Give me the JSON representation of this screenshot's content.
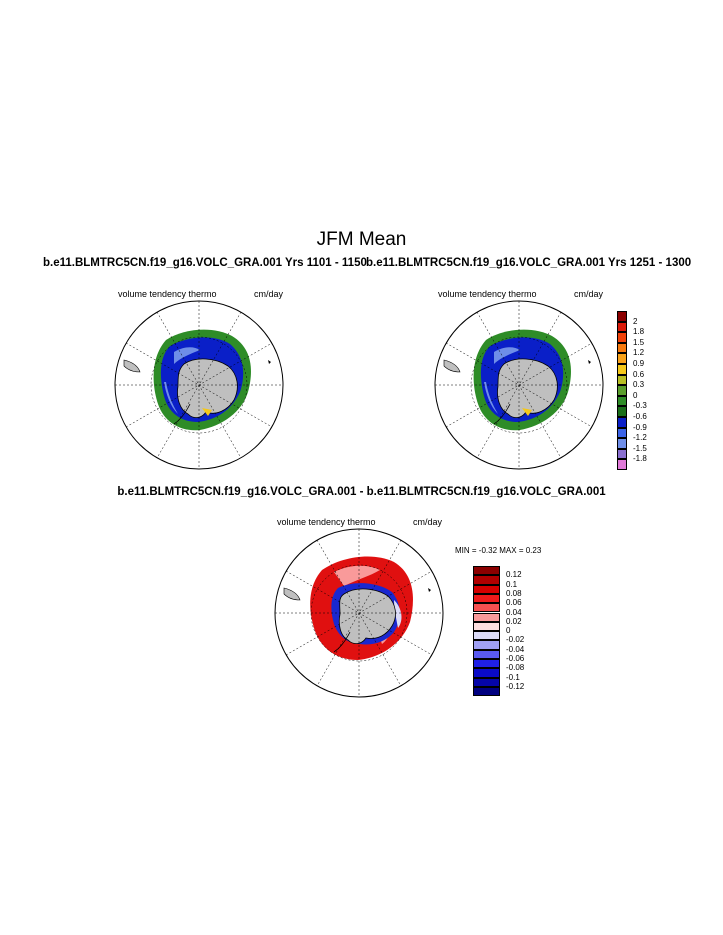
{
  "figure": {
    "main_title": "JFM Mean"
  },
  "panels": [
    {
      "title": "b.e11.BLMTRC5CN.f19_g16.VOLC_GRA.001  Yrs 1101 - 1150",
      "variable": "volume tendency thermo",
      "units": "cm/day"
    },
    {
      "title": "b.e11.BLMTRC5CN.f19_g16.VOLC_GRA.001  Yrs 1251 - 1300",
      "variable": "volume tendency thermo",
      "units": "cm/day"
    },
    {
      "title": "b.e11.BLMTRC5CN.f19_g16.VOLC_GRA.001 - b.e11.BLMTRC5CN.f19_g16.VOLC_GRA.001",
      "variable": "volume tendency thermo",
      "units": "cm/day",
      "min_label": "MIN =",
      "min_value": "-0.32",
      "max_label": "MAX =",
      "max_value": "0.23"
    }
  ],
  "legend_main": {
    "labels": [
      "2",
      "1.8",
      "1.5",
      "1.2",
      "0.9",
      "0.6",
      "0.3",
      "0",
      "-0.3",
      "-0.6",
      "-0.9",
      "-1.2",
      "-1.5",
      "-1.8"
    ],
    "colors": [
      "#8b0000",
      "#d91a0a",
      "#f0420a",
      "#f77a10",
      "#f9a21a",
      "#f5c81a",
      "#b8bf24",
      "#5a9e2c",
      "#2e8c27",
      "#1a6e1a",
      "#0a1fc8",
      "#3b63e6",
      "#6f8ee8",
      "#8a70d0",
      "#e07ad8"
    ]
  },
  "legend_diff": {
    "labels": [
      "0.12",
      "0.1",
      "0.08",
      "0.06",
      "0.04",
      "0.02",
      "0",
      "-0.02",
      "-0.04",
      "-0.06",
      "-0.08",
      "-0.1",
      "-0.12"
    ],
    "colors": [
      "#8b0000",
      "#b00000",
      "#d40000",
      "#ee1a1a",
      "#f65050",
      "#f99a9a",
      "#fcdede",
      "#dcdcf8",
      "#a0a0f4",
      "#5a5af0",
      "#2020e6",
      "#0a0ac8",
      "#0505a8",
      "#000080"
    ]
  },
  "colors": {
    "land": "#bfbfbf",
    "positive": "#e01010",
    "negative": "#1a28d0",
    "green": "#2e8c27"
  }
}
